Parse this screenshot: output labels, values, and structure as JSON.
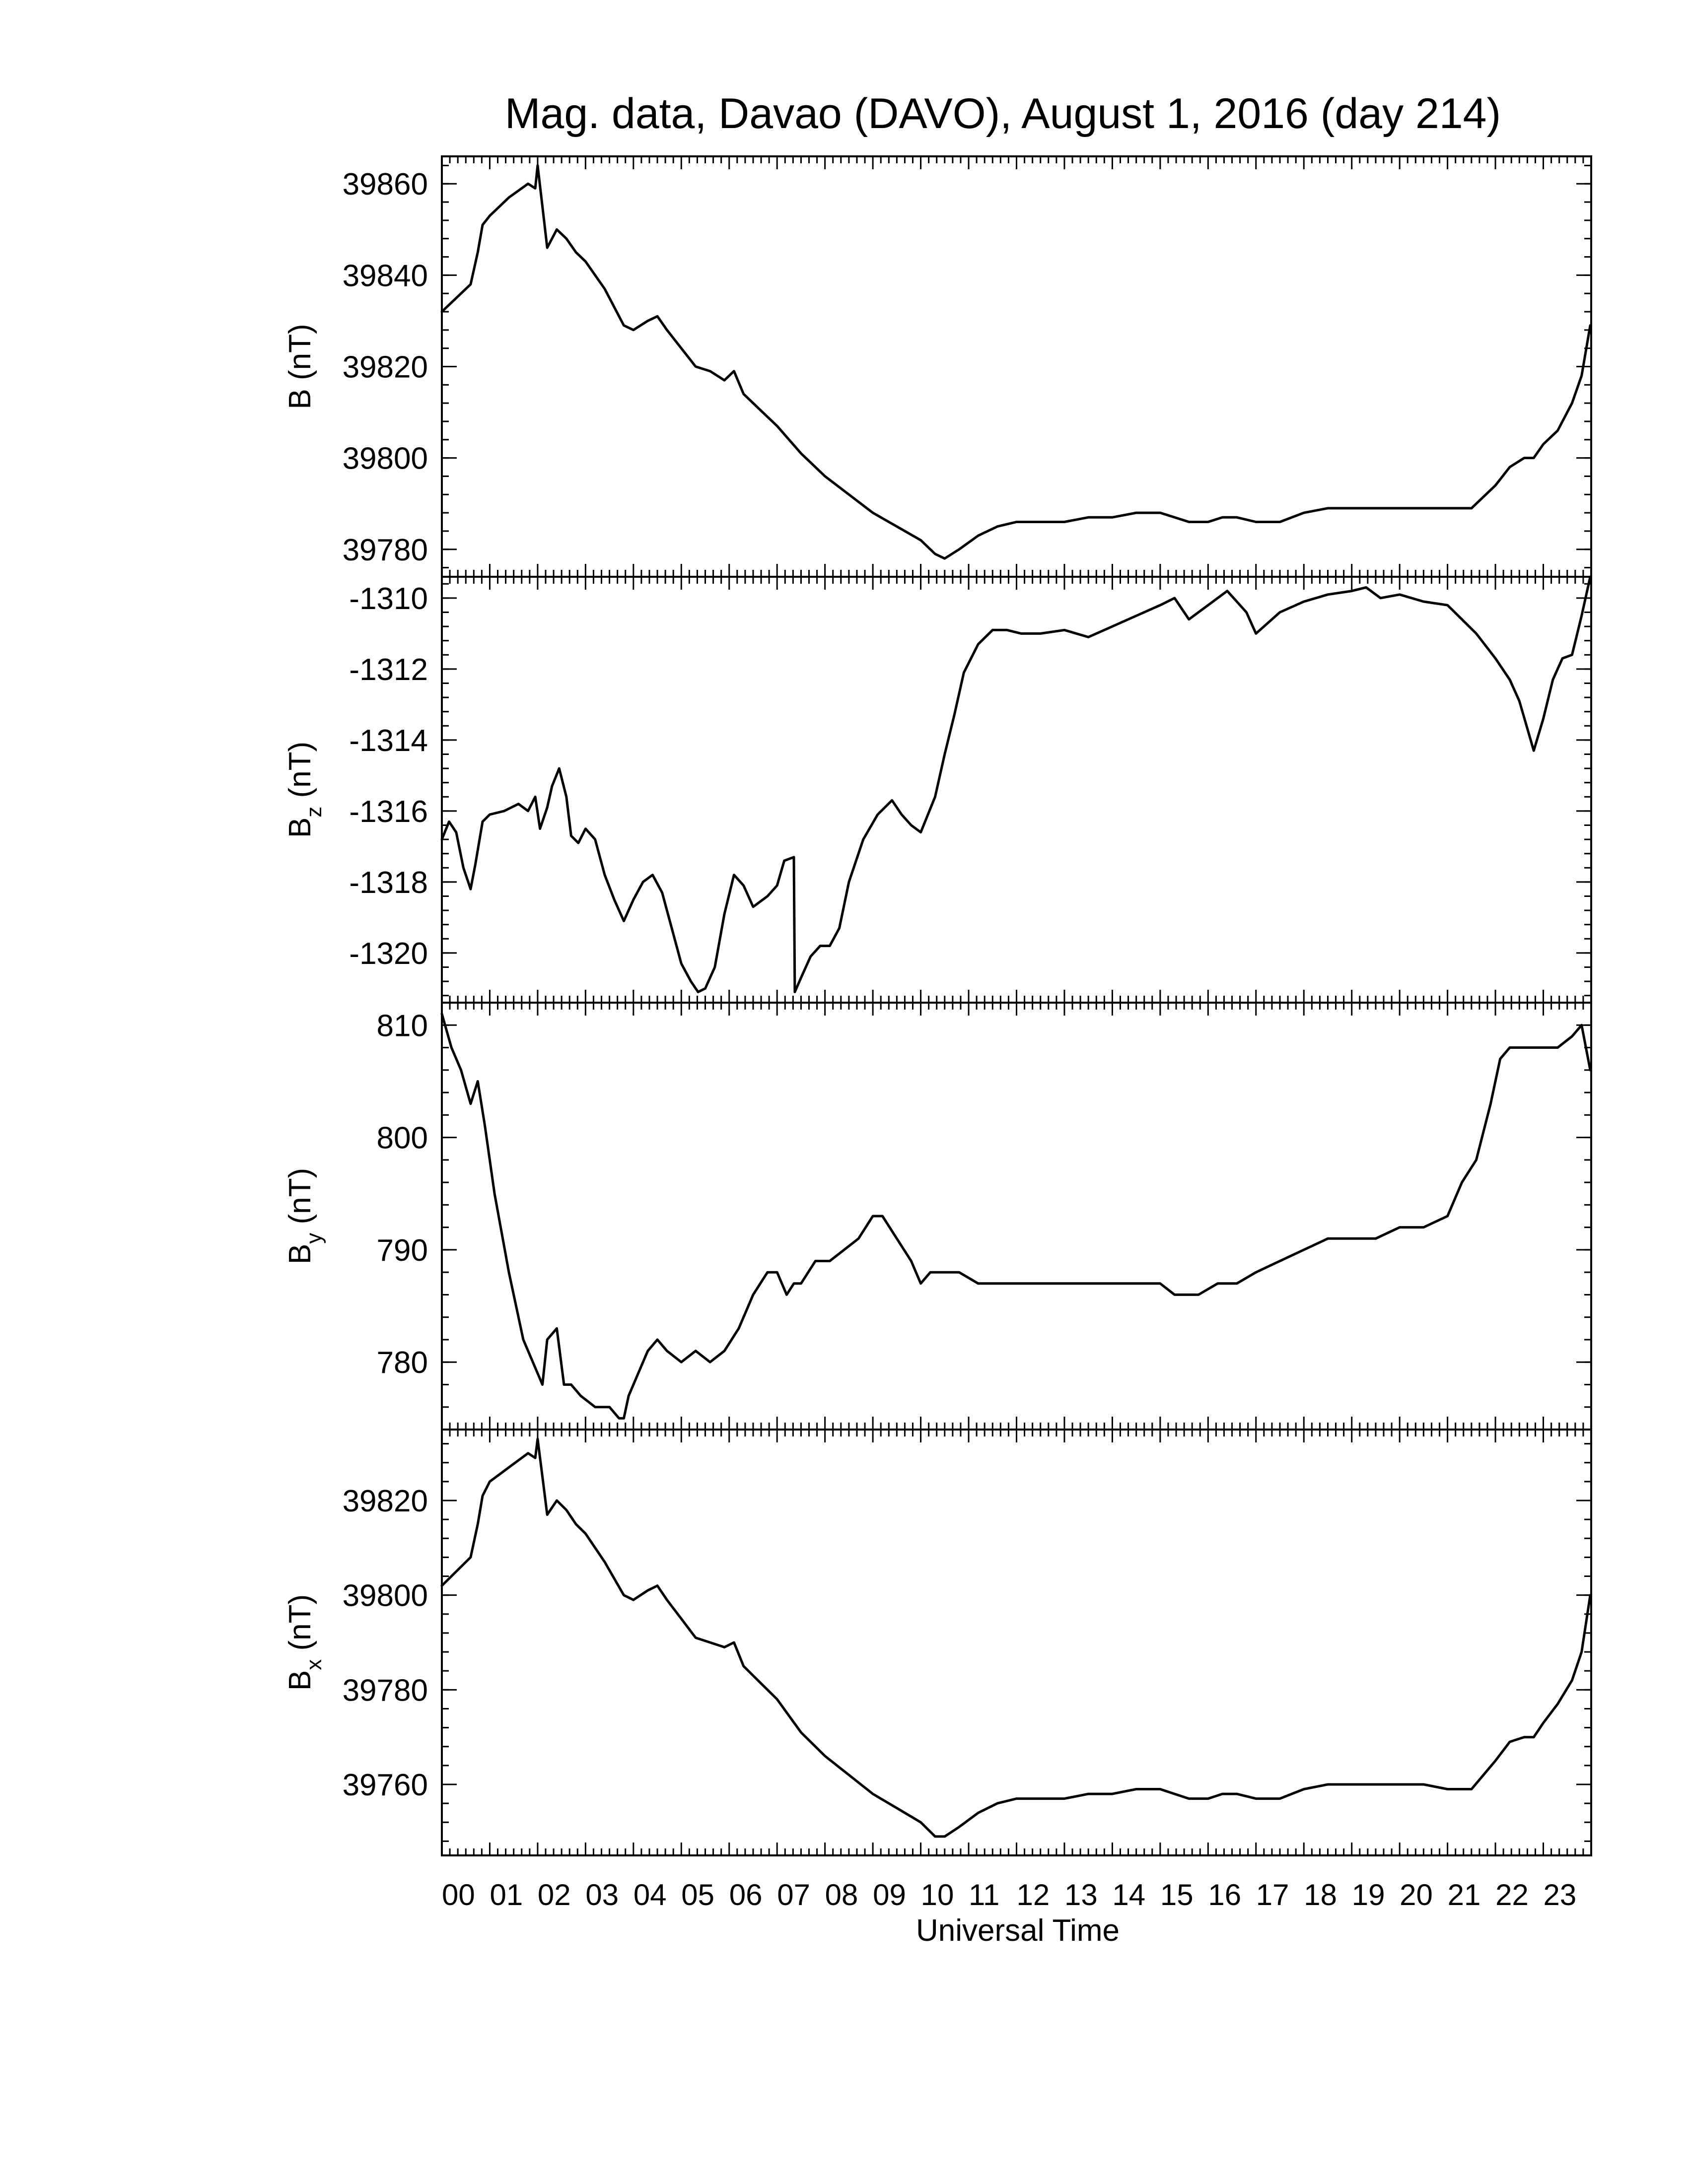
{
  "chart_data": {
    "type": "line",
    "title": "Mag. data, Davao (DAVO), August 1, 2016 (day 214)",
    "xlabel": "Universal Time",
    "x_ticks": [
      "00",
      "01",
      "02",
      "03",
      "04",
      "05",
      "06",
      "07",
      "08",
      "09",
      "10",
      "11",
      "12",
      "13",
      "14",
      "15",
      "16",
      "17",
      "18",
      "19",
      "20",
      "21",
      "22",
      "23"
    ],
    "xlim": [
      0,
      24
    ],
    "x_unit": "hours UT",
    "grid": false,
    "panels": [
      {
        "ylabel_main": "B",
        "ylabel_sub": "",
        "ylabel_unit": "(nT)",
        "ylim": [
          39774,
          39866
        ],
        "yticks": [
          39780,
          39800,
          39820,
          39840,
          39860
        ],
        "series": {
          "x": [
            0,
            0.3,
            0.6,
            0.75,
            0.85,
            1.0,
            1.4,
            1.8,
            1.95,
            2.0,
            2.1,
            2.2,
            2.4,
            2.6,
            2.8,
            3.0,
            3.4,
            3.8,
            4.0,
            4.3,
            4.5,
            4.7,
            5.0,
            5.3,
            5.6,
            5.9,
            6.1,
            6.3,
            6.6,
            7.0,
            7.5,
            8.0,
            8.5,
            9.0,
            9.5,
            10.0,
            10.3,
            10.5,
            10.8,
            11.2,
            11.6,
            12.0,
            12.5,
            13.0,
            13.5,
            14.0,
            14.5,
            15.0,
            15.3,
            15.6,
            16.0,
            16.3,
            16.6,
            17.0,
            17.5,
            18.0,
            18.5,
            19.0,
            19.5,
            20.0,
            20.5,
            21.0,
            21.5,
            22.0,
            22.3,
            22.6,
            22.8,
            23.0,
            23.3,
            23.6,
            23.8,
            23.98
          ],
          "y": [
            39832,
            39835,
            39838,
            39845,
            39851,
            39853,
            39857,
            39860,
            39859,
            39864,
            39855,
            39846,
            39850,
            39848,
            39845,
            39843,
            39837,
            39829,
            39828,
            39830,
            39831,
            39828,
            39824,
            39820,
            39819,
            39817,
            39819,
            39814,
            39811,
            39807,
            39801,
            39796,
            39792,
            39788,
            39785,
            39782,
            39779,
            39778,
            39780,
            39783,
            39785,
            39786,
            39786,
            39786,
            39787,
            39787,
            39788,
            39788,
            39787,
            39786,
            39786,
            39787,
            39787,
            39786,
            39786,
            39788,
            39789,
            39789,
            39789,
            39789,
            39789,
            39789,
            39789,
            39794,
            39798,
            39800,
            39800,
            39803,
            39806,
            39812,
            39818,
            39829
          ]
        }
      },
      {
        "ylabel_main": "B",
        "ylabel_sub": "z",
        "ylabel_unit": "(nT)",
        "ylim": [
          -1321.4,
          -1309.4
        ],
        "yticks": [
          -1320,
          -1318,
          -1316,
          -1314,
          -1312,
          -1310
        ],
        "series": {
          "x": [
            0,
            0.15,
            0.3,
            0.45,
            0.6,
            0.7,
            0.85,
            1.0,
            1.3,
            1.6,
            1.8,
            1.95,
            2.05,
            2.2,
            2.3,
            2.45,
            2.6,
            2.7,
            2.85,
            3.0,
            3.2,
            3.4,
            3.6,
            3.8,
            4.0,
            4.2,
            4.4,
            4.6,
            4.8,
            5.0,
            5.2,
            5.35,
            5.5,
            5.7,
            5.9,
            6.1,
            6.3,
            6.5,
            6.8,
            7.0,
            7.15,
            7.35,
            7.37,
            7.5,
            7.7,
            7.9,
            8.1,
            8.3,
            8.5,
            8.8,
            9.1,
            9.4,
            9.6,
            9.8,
            10.0,
            10.3,
            10.5,
            10.7,
            10.9,
            11.2,
            11.5,
            11.8,
            12.1,
            12.5,
            13.0,
            13.5,
            14.0,
            14.5,
            15.0,
            15.3,
            15.6,
            16.0,
            16.4,
            16.8,
            17.0,
            17.5,
            18.0,
            18.5,
            19.0,
            19.3,
            19.6,
            20.0,
            20.5,
            21.0,
            21.3,
            21.6,
            22.0,
            22.3,
            22.5,
            22.65,
            22.8,
            23.0,
            23.2,
            23.4,
            23.6,
            23.8,
            23.98
          ],
          "y": [
            -1316.8,
            -1316.3,
            -1316.6,
            -1317.6,
            -1318.2,
            -1317.5,
            -1316.3,
            -1316.1,
            -1316.0,
            -1315.8,
            -1316.0,
            -1315.6,
            -1316.5,
            -1315.9,
            -1315.3,
            -1314.8,
            -1315.6,
            -1316.7,
            -1316.9,
            -1316.5,
            -1316.8,
            -1317.8,
            -1318.5,
            -1319.1,
            -1318.5,
            -1318.0,
            -1317.8,
            -1318.3,
            -1319.3,
            -1320.3,
            -1320.8,
            -1321.1,
            -1321.0,
            -1320.4,
            -1318.9,
            -1317.8,
            -1318.1,
            -1318.7,
            -1318.4,
            -1318.1,
            -1317.4,
            -1317.3,
            -1321.1,
            -1320.7,
            -1320.1,
            -1319.8,
            -1319.8,
            -1319.3,
            -1318.0,
            -1316.8,
            -1316.1,
            -1315.7,
            -1316.1,
            -1316.4,
            -1316.6,
            -1315.6,
            -1314.4,
            -1313.3,
            -1312.1,
            -1311.3,
            -1310.9,
            -1310.9,
            -1311.0,
            -1311.0,
            -1310.9,
            -1311.1,
            -1310.8,
            -1310.5,
            -1310.2,
            -1310.0,
            -1310.6,
            -1310.2,
            -1309.8,
            -1310.4,
            -1311.0,
            -1310.4,
            -1310.1,
            -1309.9,
            -1309.8,
            -1309.7,
            -1310.0,
            -1309.9,
            -1310.1,
            -1310.2,
            -1310.6,
            -1311.0,
            -1311.7,
            -1312.3,
            -1312.9,
            -1313.6,
            -1314.3,
            -1313.4,
            -1312.3,
            -1311.7,
            -1311.6,
            -1310.5,
            -1309.4
          ]
        }
      },
      {
        "ylabel_main": "B",
        "ylabel_sub": "y",
        "ylabel_unit": "(nT)",
        "ylim": [
          774,
          812
        ],
        "yticks": [
          780,
          790,
          800,
          810
        ],
        "series": {
          "x": [
            0,
            0.2,
            0.4,
            0.6,
            0.75,
            0.9,
            1.1,
            1.4,
            1.7,
            2.0,
            2.1,
            2.2,
            2.4,
            2.55,
            2.7,
            2.9,
            3.2,
            3.5,
            3.7,
            3.8,
            3.9,
            4.1,
            4.3,
            4.5,
            4.7,
            5.0,
            5.3,
            5.6,
            5.9,
            6.2,
            6.5,
            6.8,
            7.0,
            7.2,
            7.35,
            7.5,
            7.8,
            8.1,
            8.4,
            8.7,
            9.0,
            9.2,
            9.5,
            9.8,
            10.0,
            10.2,
            10.5,
            10.8,
            11.2,
            11.6,
            12.0,
            12.5,
            13.0,
            13.5,
            14.0,
            14.5,
            15.0,
            15.3,
            15.5,
            15.8,
            16.2,
            16.6,
            17.0,
            17.5,
            18.0,
            18.5,
            19.0,
            19.5,
            20.0,
            20.5,
            21.0,
            21.3,
            21.6,
            21.9,
            22.1,
            22.3,
            22.6,
            23.0,
            23.3,
            23.6,
            23.8,
            23.98
          ],
          "y": [
            811,
            808,
            806,
            803,
            805,
            801,
            795,
            788,
            782,
            779,
            778,
            782,
            783,
            778,
            778,
            777,
            776,
            776,
            775,
            775,
            777,
            779,
            781,
            782,
            781,
            780,
            781,
            780,
            781,
            783,
            786,
            788,
            788,
            786,
            787,
            787,
            789,
            789,
            790,
            791,
            793,
            793,
            791,
            789,
            787,
            788,
            788,
            788,
            787,
            787,
            787,
            787,
            787,
            787,
            787,
            787,
            787,
            786,
            786,
            786,
            787,
            787,
            788,
            789,
            790,
            791,
            791,
            791,
            792,
            792,
            793,
            796,
            798,
            803,
            807,
            808,
            808,
            808,
            808,
            809,
            810,
            806
          ]
        }
      },
      {
        "ylabel_main": "B",
        "ylabel_sub": "x",
        "ylabel_unit": "(nT)",
        "ylim": [
          39745,
          39835
        ],
        "yticks": [
          39760,
          39780,
          39800,
          39820
        ],
        "series": {
          "x": [
            0,
            0.3,
            0.6,
            0.75,
            0.85,
            1.0,
            1.4,
            1.8,
            1.95,
            2.0,
            2.1,
            2.2,
            2.4,
            2.6,
            2.8,
            3.0,
            3.4,
            3.8,
            4.0,
            4.3,
            4.5,
            4.7,
            5.0,
            5.3,
            5.6,
            5.9,
            6.1,
            6.3,
            6.6,
            7.0,
            7.5,
            8.0,
            8.5,
            9.0,
            9.5,
            10.0,
            10.3,
            10.5,
            10.8,
            11.2,
            11.6,
            12.0,
            12.5,
            13.0,
            13.5,
            14.0,
            14.5,
            15.0,
            15.3,
            15.6,
            16.0,
            16.3,
            16.6,
            17.0,
            17.5,
            18.0,
            18.5,
            19.0,
            19.5,
            20.0,
            20.5,
            21.0,
            21.5,
            22.0,
            22.3,
            22.6,
            22.8,
            23.0,
            23.3,
            23.6,
            23.8,
            23.98
          ],
          "y": [
            39802,
            39805,
            39808,
            39815,
            39821,
            39824,
            39827,
            39830,
            39829,
            39833,
            39825,
            39817,
            39820,
            39818,
            39815,
            39813,
            39807,
            39800,
            39799,
            39801,
            39802,
            39799,
            39795,
            39791,
            39790,
            39789,
            39790,
            39785,
            39782,
            39778,
            39771,
            39766,
            39762,
            39758,
            39755,
            39752,
            39749,
            39749,
            39751,
            39754,
            39756,
            39757,
            39757,
            39757,
            39758,
            39758,
            39759,
            39759,
            39758,
            39757,
            39757,
            39758,
            39758,
            39757,
            39757,
            39759,
            39760,
            39760,
            39760,
            39760,
            39760,
            39759,
            39759,
            39765,
            39769,
            39770,
            39770,
            39773,
            39777,
            39782,
            39788,
            39800
          ]
        }
      }
    ]
  }
}
